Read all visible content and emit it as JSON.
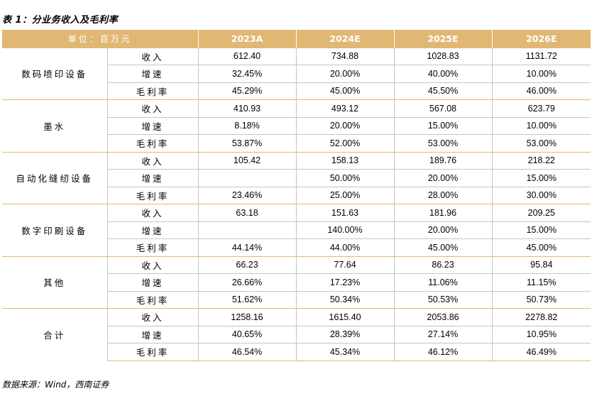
{
  "title": "表 1：分业务收入及毛利率",
  "source": "数据来源：Wind，西南证券",
  "header": {
    "unit": "单位：百万元",
    "years": [
      "2023A",
      "2024E",
      "2025E",
      "2026E"
    ]
  },
  "colors": {
    "header_bg": "#E1B774",
    "grid": "#C5C5C5"
  },
  "segments": [
    {
      "name": "数码喷印设备",
      "rows": [
        {
          "metric": "收入",
          "values": [
            "612.40",
            "734.88",
            "1028.83",
            "1131.72"
          ]
        },
        {
          "metric": "增速",
          "values": [
            "32.45%",
            "20.00%",
            "40.00%",
            "10.00%"
          ]
        },
        {
          "metric": "毛利率",
          "values": [
            "45.29%",
            "45.00%",
            "45.50%",
            "46.00%"
          ]
        }
      ]
    },
    {
      "name": "墨水",
      "rows": [
        {
          "metric": "收入",
          "values": [
            "410.93",
            "493.12",
            "567.08",
            "623.79"
          ]
        },
        {
          "metric": "增速",
          "values": [
            "8.18%",
            "20.00%",
            "15.00%",
            "10.00%"
          ]
        },
        {
          "metric": "毛利率",
          "values": [
            "53.87%",
            "52.00%",
            "53.00%",
            "53.00%"
          ]
        }
      ]
    },
    {
      "name": "自动化缝纫设备",
      "rows": [
        {
          "metric": "收入",
          "values": [
            "105.42",
            "158.13",
            "189.76",
            "218.22"
          ]
        },
        {
          "metric": "增速",
          "values": [
            "",
            "50.00%",
            "20.00%",
            "15.00%"
          ]
        },
        {
          "metric": "毛利率",
          "values": [
            "23.46%",
            "25.00%",
            "28.00%",
            "30.00%"
          ]
        }
      ]
    },
    {
      "name": "数字印刷设备",
      "rows": [
        {
          "metric": "收入",
          "values": [
            "63.18",
            "151.63",
            "181.96",
            "209.25"
          ]
        },
        {
          "metric": "增速",
          "values": [
            "",
            "140.00%",
            "20.00%",
            "15.00%"
          ]
        },
        {
          "metric": "毛利率",
          "values": [
            "44.14%",
            "44.00%",
            "45.00%",
            "45.00%"
          ]
        }
      ]
    },
    {
      "name": "其他",
      "rows": [
        {
          "metric": "收入",
          "values": [
            "66.23",
            "77.64",
            "86.23",
            "95.84"
          ]
        },
        {
          "metric": "增速",
          "values": [
            "26.66%",
            "17.23%",
            "11.06%",
            "11.15%"
          ]
        },
        {
          "metric": "毛利率",
          "values": [
            "51.62%",
            "50.34%",
            "50.53%",
            "50.73%"
          ]
        }
      ]
    },
    {
      "name": "合计",
      "rows": [
        {
          "metric": "收入",
          "values": [
            "1258.16",
            "1615.40",
            "2053.86",
            "2278.82"
          ]
        },
        {
          "metric": "增速",
          "values": [
            "40.65%",
            "28.39%",
            "27.14%",
            "10.95%"
          ]
        },
        {
          "metric": "毛利率",
          "values": [
            "46.54%",
            "45.34%",
            "46.12%",
            "46.49%"
          ]
        }
      ]
    }
  ]
}
